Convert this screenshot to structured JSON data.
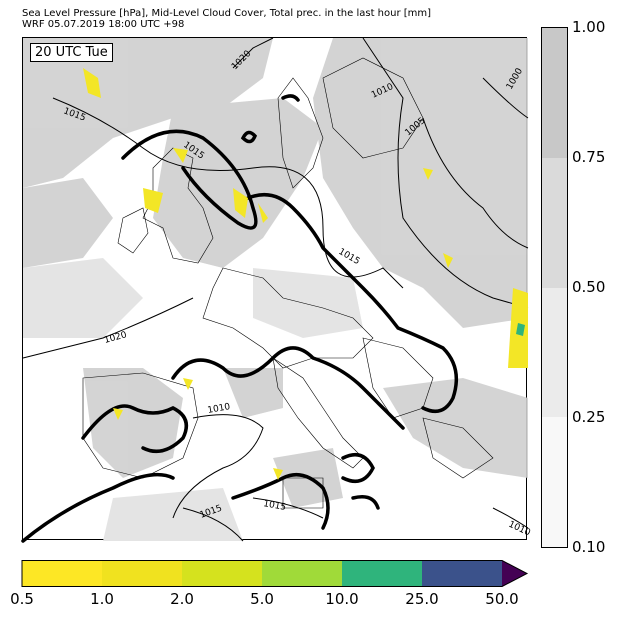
{
  "header": {
    "line1": "Sea Level Pressure [hPa], Mid-Level Cloud Cover, Total prec. in the last hour [mm]",
    "line2": "WRF 05.07.2019 18:00 UTC +98"
  },
  "map": {
    "time_label": "20 UTC Tue",
    "isobar_labels": [
      "1020",
      "1015",
      "1015",
      "1010",
      "1005",
      "1000",
      "1015",
      "1020",
      "1010",
      "1015",
      "1015",
      "1010"
    ]
  },
  "cloud_legend": {
    "ticks": [
      "1.00",
      "0.75",
      "0.50",
      "0.25",
      "0.10"
    ],
    "colors": [
      "#c8c8c8",
      "#dadada",
      "#ebebeb",
      "#f8f8f8"
    ]
  },
  "precip_legend": {
    "ticks": [
      "0.5",
      "1.0",
      "2.0",
      "5.0",
      "10.0",
      "25.0",
      "50.0"
    ],
    "colors": [
      "#fde725",
      "#f0e21f",
      "#d5e21e",
      "#a0da39",
      "#2fb47c",
      "#3b528b",
      "#440154"
    ]
  }
}
